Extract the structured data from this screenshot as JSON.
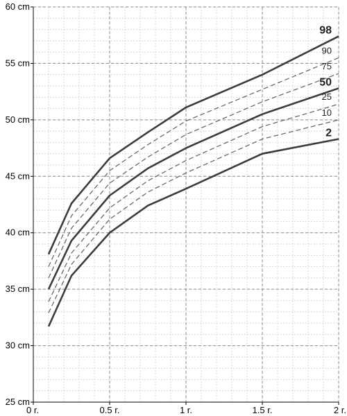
{
  "chart_data": {
    "type": "line",
    "title": "",
    "xlabel": "",
    "ylabel": "",
    "xlim": [
      0,
      2
    ],
    "ylim": [
      25,
      60
    ],
    "grid": true,
    "x_ticks": [
      {
        "value": 0,
        "label": "0 r."
      },
      {
        "value": 0.5,
        "label": "0.5 r."
      },
      {
        "value": 1,
        "label": "1 r."
      },
      {
        "value": 1.5,
        "label": "1.5 r."
      },
      {
        "value": 2,
        "label": "2 r."
      }
    ],
    "y_ticks": [
      {
        "value": 25,
        "label": "25 cm"
      },
      {
        "value": 30,
        "label": "30 cm"
      },
      {
        "value": 35,
        "label": "35 cm"
      },
      {
        "value": 40,
        "label": "40 cm"
      },
      {
        "value": 45,
        "label": "45 cm"
      },
      {
        "value": 50,
        "label": "50 cm"
      },
      {
        "value": 55,
        "label": "55 cm"
      },
      {
        "value": 60,
        "label": "60 cm"
      }
    ],
    "x": [
      0.1,
      0.25,
      0.5,
      0.75,
      1.0,
      1.5,
      2.0
    ],
    "series": [
      {
        "name": "98",
        "style": "solid",
        "color": "#3c3c3c",
        "values": [
          38.1,
          42.6,
          46.6,
          48.9,
          51.1,
          54.0,
          57.4
        ]
      },
      {
        "name": "90",
        "style": "dashed",
        "color": "#6a6a6a",
        "values": [
          37.0,
          41.5,
          45.5,
          47.8,
          49.9,
          52.7,
          55.5
        ]
      },
      {
        "name": "75",
        "style": "dashed",
        "color": "#6a6a6a",
        "values": [
          36.0,
          40.4,
          44.4,
          46.7,
          48.7,
          51.6,
          54.1
        ]
      },
      {
        "name": "50",
        "style": "solid",
        "color": "#3c3c3c",
        "values": [
          35.0,
          39.3,
          43.3,
          45.7,
          47.5,
          50.5,
          52.8
        ]
      },
      {
        "name": "25",
        "style": "dashed",
        "color": "#6a6a6a",
        "values": [
          33.9,
          38.2,
          42.2,
          44.6,
          46.4,
          49.4,
          51.4
        ]
      },
      {
        "name": "10",
        "style": "dashed",
        "color": "#6a6a6a",
        "values": [
          32.9,
          37.2,
          41.2,
          43.6,
          45.3,
          48.3,
          50.0
        ]
      },
      {
        "name": "2",
        "style": "solid",
        "color": "#3c3c3c",
        "values": [
          31.7,
          36.2,
          40.0,
          42.4,
          43.9,
          47.0,
          48.3
        ]
      }
    ],
    "legend": "line-end labels"
  }
}
